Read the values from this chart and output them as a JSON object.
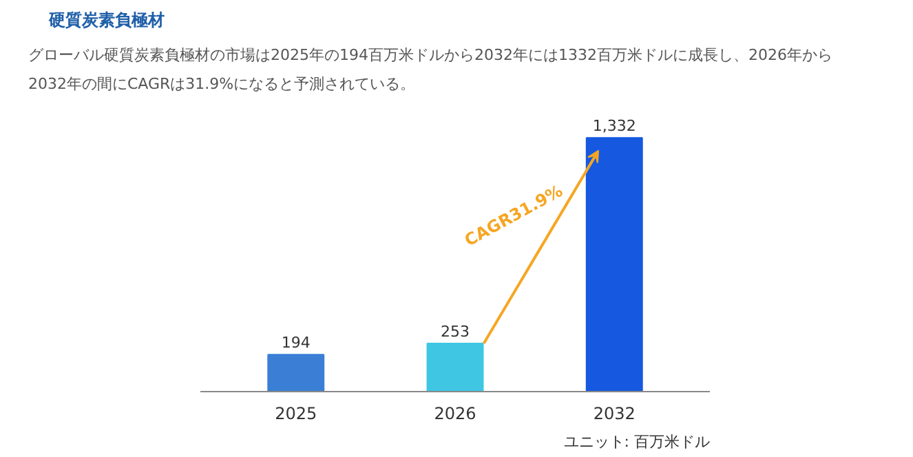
{
  "chart_data": {
    "type": "bar",
    "title": "硬質炭素負極材",
    "subtitle": "グローバル硬質炭素負極材の市場は2025年の194百万米ドルから2032年には1332百万米ドルに成長し、2026年から2032年の間にCAGRは31.9%になると予測されている。",
    "categories": [
      "2025",
      "2026",
      "2032"
    ],
    "values": [
      194,
      253,
      1332
    ],
    "colors": [
      "#3a7fd5",
      "#3ec6e3",
      "#1659e0"
    ],
    "value_labels": [
      "194",
      "253",
      "1,332"
    ],
    "annotations": [
      "CAGR31.9%",
      "ユニット: 百万米ドル"
    ]
  }
}
